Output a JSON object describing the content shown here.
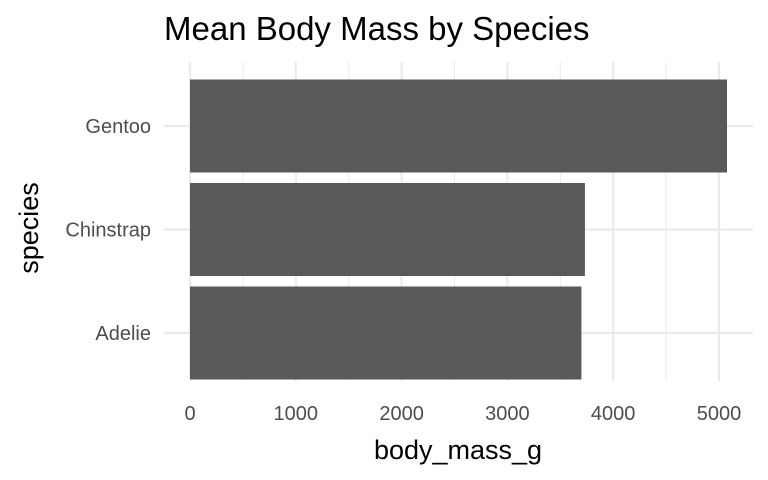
{
  "chart_data": {
    "type": "bar",
    "orientation": "horizontal",
    "title": "Mean Body Mass by Species",
    "xlabel": "body_mass_g",
    "ylabel": "species",
    "categories": [
      "Adelie",
      "Chinstrap",
      "Gentoo"
    ],
    "values": [
      3700,
      3733,
      5076
    ],
    "xlim": [
      0,
      5076
    ],
    "x_ticks": [
      "0",
      "1000",
      "2000",
      "3000",
      "4000",
      "5000"
    ],
    "bar_color": "#595959",
    "grid": true,
    "legend": "none"
  }
}
